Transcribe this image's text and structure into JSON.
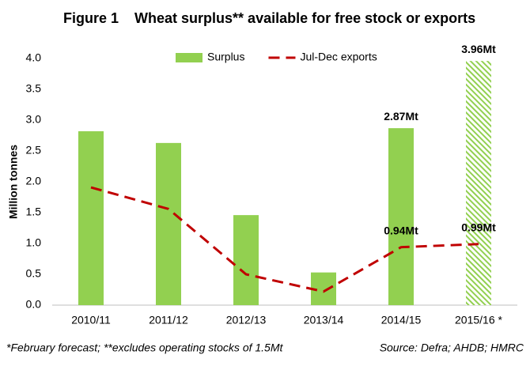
{
  "chart_data": {
    "type": "bar_line",
    "figure_label": "Figure 1",
    "title": "Wheat surplus** available for free stock or exports",
    "y_label": "Million tonnes",
    "categories": [
      "2010/11",
      "2011/12",
      "2012/13",
      "2013/14",
      "2014/15",
      "2015/16 *"
    ],
    "series": [
      {
        "name": "Surplus",
        "type": "bar",
        "color": "#92d050",
        "values": [
          2.82,
          2.63,
          1.46,
          0.53,
          2.87,
          3.96
        ],
        "value_labels": [
          null,
          null,
          null,
          null,
          "2.87Mt",
          "3.96Mt"
        ],
        "hatched": [
          false,
          false,
          false,
          false,
          false,
          true
        ]
      },
      {
        "name": "Jul-Dec exports",
        "type": "line",
        "color": "#c00000",
        "values": [
          1.91,
          1.56,
          0.5,
          0.22,
          0.94,
          0.99
        ],
        "value_labels": [
          null,
          null,
          null,
          null,
          "0.94Mt",
          "0.99Mt"
        ]
      }
    ],
    "ylim": [
      0,
      4
    ],
    "yticks": [
      {
        "value": 0,
        "label": "0.0"
      },
      0.5,
      {
        "value": 1,
        "label": "1.0"
      },
      1.5,
      {
        "value": 2,
        "label": "2.0"
      },
      2.5,
      {
        "value": 3,
        "label": "3.0"
      },
      3.5,
      {
        "value": 4,
        "label": "4.0"
      }
    ],
    "grid": false,
    "legend": "top",
    "footnote": "*February forecast; **excludes operating stocks of 1.5Mt",
    "source": "Source: Defra; AHDB; HMRC"
  }
}
